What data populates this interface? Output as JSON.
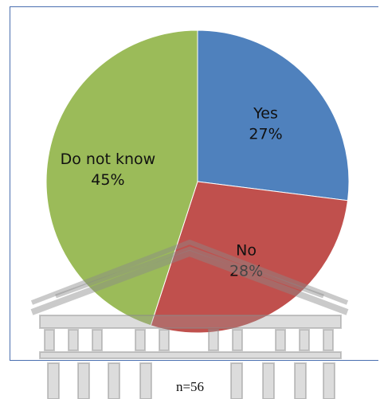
{
  "chart_data": {
    "type": "pie",
    "title": "",
    "slices": [
      {
        "label": "Yes",
        "value": 27,
        "value_label": "27%",
        "color": "#4f81bd"
      },
      {
        "label": "No",
        "value": 28,
        "value_label": "28%",
        "color": "#c0504d"
      },
      {
        "label": "Do not know",
        "value": 45,
        "value_label": "45%",
        "color": "#9bbb59"
      }
    ],
    "start_angle_deg": 0,
    "direction": "clockwise",
    "legend": "none",
    "data_labels": "inside"
  },
  "footnote": "n=56",
  "watermark": {
    "icon": "university-building-watermark-icon",
    "color": "#9a9a9a"
  }
}
